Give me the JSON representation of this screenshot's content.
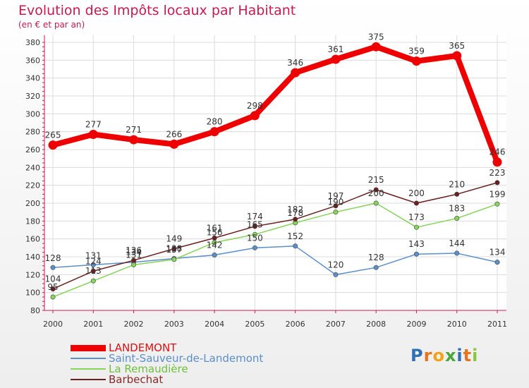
{
  "title": "Evolution des Impôts locaux par Habitant",
  "subtitle": "(en € et par an)",
  "logo": {
    "letters": [
      "P",
      "r",
      "o",
      "x",
      "i",
      "t",
      "i"
    ],
    "colors": [
      "#2f6fb3",
      "#e8731c",
      "#f2a31b",
      "#4aa83a",
      "#2f6fb3",
      "#e8731c",
      "#8cc63f"
    ]
  },
  "chart_data": {
    "type": "line",
    "title": "Evolution des Impôts locaux par Habitant",
    "subtitle": "(en € et par an)",
    "xlabel": "",
    "ylabel": "",
    "x": [
      "2000",
      "2001",
      "2002",
      "2003",
      "2004",
      "2005",
      "2006",
      "2007",
      "2008",
      "2009",
      "2010",
      "2011"
    ],
    "ylim": [
      80,
      380
    ],
    "yticks": [
      80,
      100,
      120,
      140,
      160,
      180,
      200,
      220,
      240,
      260,
      280,
      300,
      320,
      340,
      360,
      380
    ],
    "grid": true,
    "legend_position": "bottom-left",
    "series": [
      {
        "name": "LANDEMONT",
        "color": "#ee0000",
        "values": [
          265,
          277,
          271,
          266,
          280,
          298,
          346,
          361,
          375,
          359,
          365,
          246
        ],
        "labels": [
          "265",
          "277",
          "271",
          "266",
          "280",
          "298",
          "346",
          "361",
          "375",
          "359",
          "365",
          "246"
        ]
      },
      {
        "name": "Saint-Sauveur-de-Landemont",
        "color": "#5b8fc9",
        "values": [
          128,
          131,
          134,
          138,
          142,
          150,
          152,
          120,
          128,
          143,
          144,
          134
        ],
        "labels": [
          "128",
          "131",
          "134",
          "138",
          "142",
          "150",
          "152",
          "120",
          "128",
          "143",
          "144",
          "134"
        ]
      },
      {
        "name": "La Remaudière",
        "color": "#88d35a",
        "values": [
          95,
          113,
          131,
          137,
          156,
          165,
          178,
          190,
          200,
          173,
          183,
          199
        ],
        "labels": [
          "95",
          "113",
          "131",
          "137",
          "156",
          "165",
          "178",
          "190",
          "200",
          "173",
          "183",
          "199"
        ]
      },
      {
        "name": "Barbechat",
        "color": "#6b1f1f",
        "values": [
          104,
          124,
          136,
          149,
          161,
          174,
          182,
          197,
          215,
          200,
          210,
          223
        ],
        "labels": [
          "104",
          "124",
          "136",
          "149",
          "161",
          "174",
          "182",
          "197",
          "215",
          "200",
          "210",
          "223"
        ]
      }
    ]
  }
}
